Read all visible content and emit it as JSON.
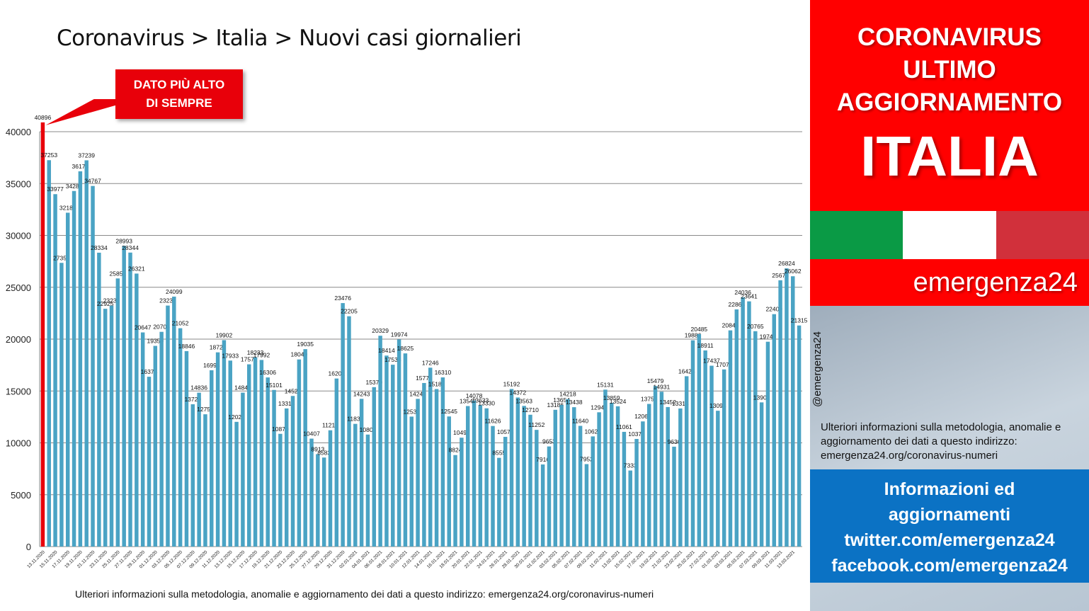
{
  "title": "Coronavirus > Italia > Nuovi casi giornalieri",
  "callout": {
    "line1": "DATO PIÙ ALTO",
    "line2": "DI SEMPRE"
  },
  "footer_note": "Ulteriori informazioni sulla metodologia, anomalie e aggiornamento dei dati a questo indirizzo: emergenza24.org/coronavirus-numeri",
  "sidebar": {
    "headline1": "CORONAVIRUS",
    "headline2": "ULTIMO",
    "headline3": "AGGIORNAMENTO",
    "country": "ITALIA",
    "brand": "emergenza24",
    "handle": "@emergenza24",
    "note": "Ulteriori informazioni sulla metodologia, anomalie e aggiornamento dei dati a questo indirizzo: emergenza24.org/coronavirus-numeri",
    "info1": "Informazioni ed",
    "info2": "aggiornamenti",
    "info3": "twitter.com/emergenza24",
    "info4": "facebook.com/emergenza24"
  },
  "colors": {
    "bar": "#4aa3c4",
    "highlight_bar": "#e8000a",
    "red": "#ff0000",
    "blue_box": "#0b72c4",
    "flag_green": "#0a9a45",
    "flag_white": "#ffffff",
    "flag_red": "#d1303b"
  },
  "chart_data": {
    "type": "bar",
    "ylim": [
      0,
      40000
    ],
    "yticks": [
      0,
      5000,
      10000,
      15000,
      20000,
      25000,
      30000,
      35000,
      40000
    ],
    "grid": true,
    "highlight_index": 0,
    "categories": [
      "13.11.2020",
      "14.11.2020",
      "15.11.2020",
      "16.11.2020",
      "17.11.2020",
      "18.11.2020",
      "19.11.2020",
      "20.11.2020",
      "21.11.2020",
      "22.11.2020",
      "23.11.2020",
      "24.11.2020",
      "25.11.2020",
      "26.11.2020",
      "27.11.2020",
      "28.11.2020",
      "29.11.2020",
      "30.11.2020",
      "01.12.2020",
      "02.12.2020",
      "03.12.2020",
      "04.12.2020",
      "05.12.2020",
      "06.12.2020",
      "07.12.2020",
      "08.12.2020",
      "09.12.2020",
      "10.12.2020",
      "11.12.2020",
      "12.12.2020",
      "13.12.2020",
      "14.12.2020",
      "15.12.2020",
      "16.12.2020",
      "17.12.2020",
      "18.12.2020",
      "19.12.2020",
      "20.12.2020",
      "21.12.2020",
      "22.12.2020",
      "23.12.2020",
      "24.12.2020",
      "25.12.2020",
      "26.12.2020",
      "27.12.2020",
      "28.12.2020",
      "29.12.2020",
      "30.12.2020",
      "31.12.2020",
      "01.01.2021",
      "02.01.2021",
      "03.01.2021",
      "04.01.2021",
      "05.01.2021",
      "06.01.2021",
      "07.01.2021",
      "08.01.2021",
      "09.01.2021",
      "10.01.2021",
      "11.01.2021",
      "12.01.2021",
      "13.01.2021",
      "14.01.2021",
      "15.01.2021",
      "16.01.2021",
      "17.01.2021",
      "18.01.2021",
      "19.01.2021",
      "20.01.2021",
      "21.01.2021",
      "22.01.2021",
      "23.01.2021",
      "24.01.2021",
      "25.01.2021",
      "26.01.2021",
      "27.01.2021",
      "28.01.2021",
      "29.01.2021",
      "30.01.2021",
      "31.01.2021",
      "01.02.2021",
      "02.02.2021",
      "03.02.2021",
      "04.02.2021",
      "05.02.2021",
      "06.02.2021",
      "07.02.2021",
      "08.02.2021",
      "09.02.2021",
      "10.02.2021",
      "11.02.2021",
      "12.02.2021",
      "13.02.2021",
      "14.02.2021",
      "15.02.2021",
      "16.02.2021",
      "17.02.2021",
      "18.02.2021",
      "19.02.2021",
      "20.02.2021",
      "21.02.2021",
      "22.02.2021",
      "23.02.2021",
      "24.02.2021",
      "25.02.2021",
      "26.02.2021",
      "27.02.2021",
      "28.02.2021",
      "01.03.2021",
      "02.03.2021",
      "03.03.2021",
      "04.03.2021",
      "05.03.2021",
      "06.03.2021",
      "07.03.2021",
      "08.03.2021",
      "09.03.2021",
      "10.03.2021",
      "11.03.2021",
      "12.03.2021",
      "13.03.2021",
      "14.03.2021"
    ],
    "values": [
      40896,
      37253,
      33977,
      27354,
      32188,
      34283,
      36178,
      37239,
      34767,
      28334,
      22925,
      23231,
      25851,
      28993,
      28344,
      26321,
      20647,
      16374,
      19350,
      20703,
      23236,
      24099,
      21052,
      18846,
      13720,
      14836,
      12755,
      16998,
      18726,
      19902,
      17933,
      12025,
      14840,
      17572,
      18233,
      17992,
      16306,
      15101,
      10870,
      13318,
      14522,
      18040,
      19035,
      10407,
      8913,
      8583,
      11212,
      16202,
      23476,
      22205,
      11831,
      14243,
      10800,
      15370,
      20329,
      18414,
      17533,
      19974,
      18625,
      12532,
      14241,
      15771,
      17246,
      15187,
      16310,
      12545,
      8824,
      10497,
      13548,
      14078,
      13633,
      13330,
      11626,
      8555,
      10578,
      15192,
      14372,
      13563,
      12710,
      11252,
      7916,
      9653,
      13186,
      13654,
      14218,
      13438,
      11640,
      7952,
      10621,
      12947,
      15131,
      13859,
      13524,
      11061,
      7333,
      10378,
      12067,
      13753,
      15479,
      14931,
      13452,
      9630,
      13314,
      16424,
      19886,
      20485,
      18911,
      17437,
      13094,
      17079,
      20844,
      22865,
      24036,
      23641,
      20765,
      13902,
      19749,
      22409,
      25673,
      26824,
      26062,
      21315
    ]
  }
}
